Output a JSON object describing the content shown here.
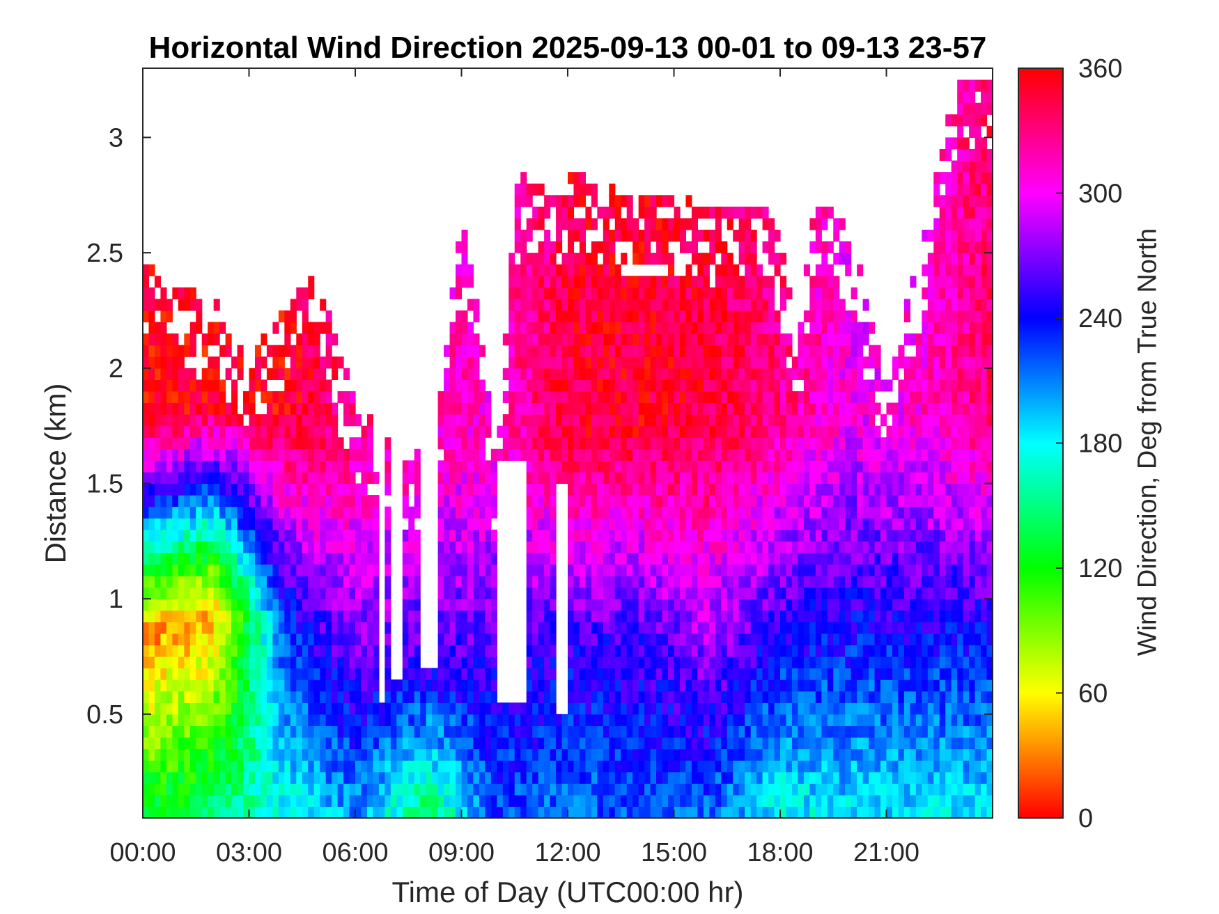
{
  "chart_data": {
    "type": "heatmap",
    "title": "Horizontal Wind Direction 2025-09-13 00-01 to 09-13 23-57",
    "xlabel": "Time of Day (UTC00:00 hr)",
    "ylabel": "Distance (km)",
    "colorbar_label": "Wind Direction, Deg from True North",
    "xlim_hours": [
      0,
      24
    ],
    "ylim_km": [
      0.05,
      3.3
    ],
    "clim": [
      0,
      360
    ],
    "colormap": "hsv (0=red, 60=yellow, 120=green, 180=cyan, 240=blue, 300=magenta, 360=red)",
    "x_ticks": [
      {
        "value": 0,
        "label": "00:00"
      },
      {
        "value": 3,
        "label": "03:00"
      },
      {
        "value": 6,
        "label": "06:00"
      },
      {
        "value": 9,
        "label": "09:00"
      },
      {
        "value": 12,
        "label": "12:00"
      },
      {
        "value": 15,
        "label": "15:00"
      },
      {
        "value": 18,
        "label": "18:00"
      },
      {
        "value": 21,
        "label": "21:00"
      }
    ],
    "y_ticks": [
      {
        "value": 0.5,
        "label": "0.5"
      },
      {
        "value": 1,
        "label": "1"
      },
      {
        "value": 1.5,
        "label": "1.5"
      },
      {
        "value": 2,
        "label": "2"
      },
      {
        "value": 2.5,
        "label": "2.5"
      },
      {
        "value": 3,
        "label": "3"
      }
    ],
    "colorbar_ticks": [
      {
        "value": 0,
        "label": "0"
      },
      {
        "value": 60,
        "label": "60"
      },
      {
        "value": 120,
        "label": "120"
      },
      {
        "value": 180,
        "label": "180"
      },
      {
        "value": 240,
        "label": "240"
      },
      {
        "value": 300,
        "label": "300"
      },
      {
        "value": 360,
        "label": "360"
      }
    ],
    "data_top_km_by_hour": [
      [
        0,
        2.45
      ],
      [
        1,
        2.35
      ],
      [
        2,
        2.3
      ],
      [
        3,
        2.05
      ],
      [
        4,
        2.25
      ],
      [
        5,
        2.45
      ],
      [
        5.5,
        2.1
      ],
      [
        6,
        1.85
      ],
      [
        7,
        1.7
      ],
      [
        8,
        1.6
      ],
      [
        8.5,
        2.0
      ],
      [
        9,
        2.65
      ],
      [
        9.5,
        2.2
      ],
      [
        10,
        1.55
      ],
      [
        10.5,
        2.8
      ],
      [
        11,
        2.85
      ],
      [
        11.5,
        2.75
      ],
      [
        12,
        2.85
      ],
      [
        13,
        2.8
      ],
      [
        14,
        2.75
      ],
      [
        15,
        2.75
      ],
      [
        16,
        2.7
      ],
      [
        17,
        2.7
      ],
      [
        17.5,
        2.7
      ],
      [
        18,
        2.55
      ],
      [
        18.5,
        2.1
      ],
      [
        19,
        2.75
      ],
      [
        20,
        2.6
      ],
      [
        21,
        1.9
      ],
      [
        22,
        2.55
      ],
      [
        23,
        3.25
      ],
      [
        24,
        3.3
      ]
    ],
    "gaps": [
      {
        "hours": [
          6.6,
          6.75
        ],
        "km": [
          0.55,
          1.9
        ]
      },
      {
        "hours": [
          7.0,
          7.3
        ],
        "km": [
          0.65,
          2.0
        ]
      },
      {
        "hours": [
          7.8,
          8.3
        ],
        "km": [
          0.7,
          2.3
        ]
      },
      {
        "hours": [
          10.0,
          10.9
        ],
        "km": [
          0.55,
          1.6
        ]
      },
      {
        "hours": [
          11.6,
          12.0
        ],
        "km": [
          0.5,
          1.5
        ]
      }
    ],
    "direction_profile_deg_by_hour": [
      {
        "hour": 0,
        "low": 140,
        "mid_height_km": 0.85,
        "mid": 30,
        "high": 355
      },
      {
        "hour": 2,
        "low": 155,
        "mid_height_km": 0.95,
        "mid": 40,
        "high": 355
      },
      {
        "hour": 4,
        "low": 170,
        "mid_height_km": 0.9,
        "mid": 230,
        "high": 355
      },
      {
        "hour": 6,
        "low": 200,
        "mid_height_km": 0.8,
        "mid": 270,
        "high": 325
      },
      {
        "hour": 8,
        "low": 130,
        "mid_height_km": 0.7,
        "mid": 250,
        "high": 315
      },
      {
        "hour": 10,
        "low": 220,
        "mid_height_km": 0.75,
        "mid": 255,
        "high": 310
      },
      {
        "hour": 12,
        "low": 210,
        "mid_height_km": 0.8,
        "mid": 250,
        "high": 345
      },
      {
        "hour": 14,
        "low": 220,
        "mid_height_km": 0.85,
        "mid": 255,
        "high": 350
      },
      {
        "hour": 16,
        "low": 210,
        "mid_height_km": 0.85,
        "mid": 280,
        "high": 345
      },
      {
        "hour": 18,
        "low": 170,
        "mid_height_km": 0.9,
        "mid": 250,
        "high": 330
      },
      {
        "hour": 20,
        "low": 180,
        "mid_height_km": 0.85,
        "mid": 240,
        "high": 300
      },
      {
        "hour": 22,
        "low": 180,
        "mid_height_km": 0.9,
        "mid": 245,
        "high": 310
      },
      {
        "hour": 24,
        "low": 180,
        "mid_height_km": 0.9,
        "mid": 245,
        "high": 335
      }
    ],
    "grid": false,
    "colorbar_position": "right"
  }
}
